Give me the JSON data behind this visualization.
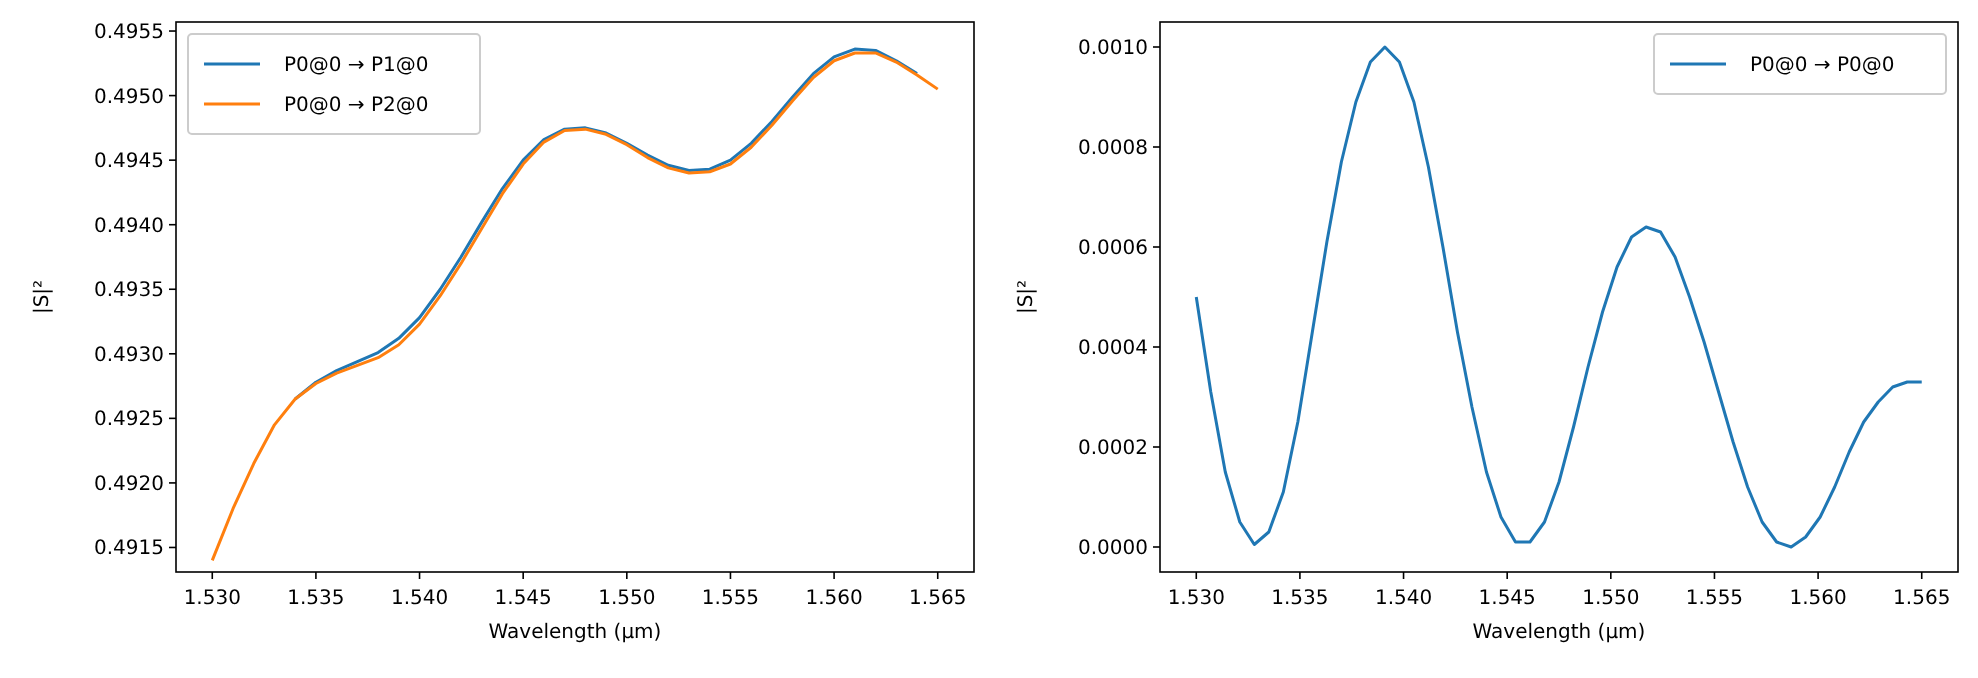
{
  "chart_data": [
    {
      "type": "line",
      "xlabel": "Wavelength (µm)",
      "ylabel": "|S|²",
      "legend": "top left",
      "xlim": [
        1.52825,
        1.56675
      ],
      "ylim": [
        0.49131,
        0.49557
      ],
      "xticks": [
        {
          "value": 1.53,
          "label": "1.530"
        },
        {
          "value": 1.535,
          "label": "1.535"
        },
        {
          "value": 1.54,
          "label": "1.540"
        },
        {
          "value": 1.545,
          "label": "1.545"
        },
        {
          "value": 1.55,
          "label": "1.550"
        },
        {
          "value": 1.555,
          "label": "1.555"
        },
        {
          "value": 1.56,
          "label": "1.560"
        },
        {
          "value": 1.565,
          "label": "1.565"
        }
      ],
      "yticks": [
        0.4915,
        {
          "value": 0.492,
          "label": "0.4920"
        },
        0.4925,
        {
          "value": 0.493,
          "label": "0.4930"
        },
        0.4935,
        {
          "value": 0.494,
          "label": "0.4940"
        },
        0.4945,
        {
          "value": 0.495,
          "label": "0.4950"
        },
        0.4955
      ],
      "x": [
        1.53,
        1.531,
        1.532,
        1.533,
        1.534,
        1.535,
        1.536,
        1.537,
        1.538,
        1.539,
        1.54,
        1.541,
        1.542,
        1.543,
        1.544,
        1.545,
        1.546,
        1.547,
        1.548,
        1.549,
        1.55,
        1.551,
        1.552,
        1.553,
        1.554,
        1.555,
        1.556,
        1.557,
        1.558,
        1.559,
        1.56,
        1.561,
        1.562,
        1.563,
        1.564,
        1.565
      ],
      "series": [
        {
          "name": "P0@0 → P1@0",
          "color": "#1f77b4",
          "values": [
            null,
            null,
            null,
            null,
            0.49265,
            0.49278,
            0.49287,
            0.49294,
            0.49301,
            0.49312,
            0.49328,
            0.4935,
            0.49375,
            0.49402,
            0.49428,
            0.4945,
            0.49466,
            0.49474,
            0.49475,
            0.49471,
            0.49463,
            0.49454,
            0.49446,
            0.49442,
            0.49443,
            0.4945,
            0.49463,
            0.4948,
            0.49499,
            0.49517,
            0.4953,
            0.49536,
            0.49535,
            0.49527,
            0.49517,
            null
          ]
        },
        {
          "name": "P0@0 → P2@0",
          "color": "#ff7f0e",
          "values": [
            0.4914,
            0.4918,
            0.49215,
            0.49245,
            0.49265,
            0.49277,
            0.49285,
            0.49291,
            0.49297,
            0.49307,
            0.49323,
            0.49345,
            0.4937,
            0.49397,
            0.49424,
            0.49447,
            0.49464,
            0.49473,
            0.49474,
            0.4947,
            0.49462,
            0.49452,
            0.49444,
            0.4944,
            0.49441,
            0.49447,
            0.4946,
            0.49477,
            0.49496,
            0.49514,
            0.49527,
            0.49533,
            0.49533,
            0.49526,
            0.49516,
            0.49505
          ]
        }
      ]
    },
    {
      "type": "line",
      "xlabel": "Wavelength (µm)",
      "ylabel": "|S|²",
      "legend": "top right",
      "xlim": [
        1.52825,
        1.56675
      ],
      "ylim": [
        -5e-05,
        0.00105
      ],
      "xticks": [
        {
          "value": 1.53,
          "label": "1.530"
        },
        {
          "value": 1.535,
          "label": "1.535"
        },
        {
          "value": 1.54,
          "label": "1.540"
        },
        {
          "value": 1.545,
          "label": "1.545"
        },
        {
          "value": 1.55,
          "label": "1.550"
        },
        {
          "value": 1.555,
          "label": "1.555"
        },
        {
          "value": 1.56,
          "label": "1.560"
        },
        {
          "value": 1.565,
          "label": "1.565"
        }
      ],
      "yticks": [
        {
          "value": 0,
          "label": "0.0000"
        },
        {
          "value": 0.0002,
          "label": "0.0002"
        },
        {
          "value": 0.0004,
          "label": "0.0004"
        },
        {
          "value": 0.0006,
          "label": "0.0006"
        },
        {
          "value": 0.0008,
          "label": "0.0008"
        },
        {
          "value": 0.001,
          "label": "0.0010"
        }
      ],
      "x": [
        1.53,
        1.5307,
        1.5314,
        1.5321,
        1.5328,
        1.5335,
        1.5342,
        1.5349,
        1.5356,
        1.5363,
        1.537,
        1.5377,
        1.5384,
        1.5391,
        1.5398,
        1.5405,
        1.5412,
        1.5419,
        1.5426,
        1.5433,
        1.544,
        1.5447,
        1.5454,
        1.5461,
        1.5468,
        1.5475,
        1.5482,
        1.5489,
        1.5496,
        1.5503,
        1.551,
        1.5517,
        1.5524,
        1.5531,
        1.5538,
        1.5545,
        1.5552,
        1.5559,
        1.5566,
        1.5573,
        1.558,
        1.5587,
        1.5594,
        1.5601,
        1.5608,
        1.5615,
        1.5622,
        1.5629,
        1.5636,
        1.5643,
        1.565
      ],
      "series": [
        {
          "name": "P0@0 → P0@0",
          "color": "#1f77b4",
          "values": [
            0.0005,
            0.00031,
            0.00015,
            5e-05,
            5e-06,
            3e-05,
            0.00011,
            0.00025,
            0.00043,
            0.00061,
            0.00077,
            0.00089,
            0.00097,
            0.001,
            0.00097,
            0.00089,
            0.00076,
            0.0006,
            0.00043,
            0.00028,
            0.00015,
            6e-05,
            1e-05,
            1e-05,
            5e-05,
            0.00013,
            0.00024,
            0.00036,
            0.00047,
            0.00056,
            0.00062,
            0.00064,
            0.00063,
            0.00058,
            0.0005,
            0.00041,
            0.00031,
            0.00021,
            0.00012,
            5e-05,
            1e-05,
            0.0,
            2e-05,
            6e-05,
            0.00012,
            0.00019,
            0.00025,
            0.00029,
            0.00032,
            0.00033,
            0.00033
          ]
        }
      ]
    }
  ]
}
